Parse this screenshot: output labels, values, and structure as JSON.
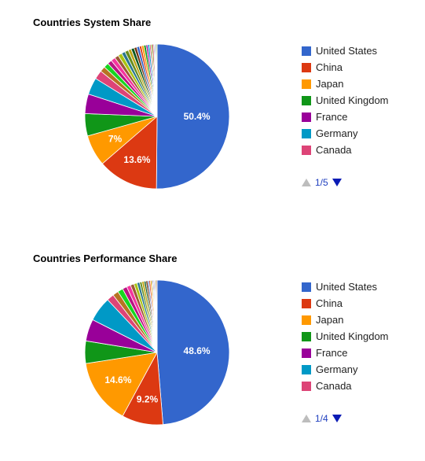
{
  "colors": {
    "others": [
      "#b77322",
      "#16d620",
      "#b91383",
      "#f4359e",
      "#9c5935",
      "#a9c413",
      "#2a778d",
      "#668d1c",
      "#bea413",
      "#0c5922",
      "#743411",
      "#3366cc",
      "#dc3912",
      "#ff9900",
      "#109618",
      "#990099",
      "#0099c6",
      "#dd4477",
      "#66aa00",
      "#b82e2e",
      "#316395",
      "#994499",
      "#22aa99",
      "#aaaa11",
      "#6633cc",
      "#e67300",
      "#8b0707",
      "#651067",
      "#329262",
      "#5574a6"
    ]
  },
  "chart_data": [
    {
      "type": "pie",
      "title": "Countries System Share",
      "series": [
        {
          "name": "United States",
          "value": 50.4,
          "color": "#3366cc",
          "label": "50.4%"
        },
        {
          "name": "China",
          "value": 13.6,
          "color": "#dc3912",
          "label": "13.6%"
        },
        {
          "name": "Japan",
          "value": 7.0,
          "color": "#ff9900",
          "label": "7%"
        },
        {
          "name": "United Kingdom",
          "value": 5.0,
          "color": "#109618",
          "label": ""
        },
        {
          "name": "France",
          "value": 4.4,
          "color": "#990099",
          "label": ""
        },
        {
          "name": "Germany",
          "value": 3.8,
          "color": "#0099c6",
          "label": ""
        },
        {
          "name": "Canada",
          "value": 2.0,
          "color": "#dd4477",
          "label": ""
        }
      ],
      "other_slices": [
        1.2,
        1.1,
        1.0,
        1.0,
        0.9,
        0.9,
        0.8,
        0.8,
        0.7,
        0.7,
        0.6,
        0.6,
        0.5,
        0.5,
        0.5,
        0.4,
        0.4,
        0.3,
        0.3,
        0.3,
        0.2,
        0.2,
        0.2,
        0.2
      ],
      "legend": {
        "items": [
          "United States",
          "China",
          "Japan",
          "United Kingdom",
          "France",
          "Germany",
          "Canada"
        ],
        "placement": "right"
      },
      "pager": {
        "text": "1/5"
      }
    },
    {
      "type": "pie",
      "title": "Countries Performance Share",
      "series": [
        {
          "name": "United States",
          "value": 48.6,
          "color": "#3366cc",
          "label": "48.6%"
        },
        {
          "name": "China",
          "value": 9.2,
          "color": "#dc3912",
          "label": "9.2%"
        },
        {
          "name": "Japan",
          "value": 14.6,
          "color": "#ff9900",
          "label": "14.6%"
        },
        {
          "name": "United Kingdom",
          "value": 5.0,
          "color": "#109618",
          "label": ""
        },
        {
          "name": "France",
          "value": 4.9,
          "color": "#990099",
          "label": ""
        },
        {
          "name": "Germany",
          "value": 5.5,
          "color": "#0099c6",
          "label": ""
        },
        {
          "name": "Canada",
          "value": 1.6,
          "color": "#dd4477",
          "label": ""
        }
      ],
      "other_slices": [
        1.3,
        1.2,
        1.0,
        0.9,
        0.8,
        0.7,
        0.6,
        0.5,
        0.5,
        0.4,
        0.4,
        0.3,
        0.3,
        0.3,
        0.2,
        0.2,
        0.2,
        0.2,
        0.2,
        0.2
      ],
      "legend": {
        "items": [
          "United States",
          "China",
          "Japan",
          "United Kingdom",
          "France",
          "Germany",
          "Canada"
        ],
        "placement": "right"
      },
      "pager": {
        "text": "1/4"
      }
    }
  ]
}
